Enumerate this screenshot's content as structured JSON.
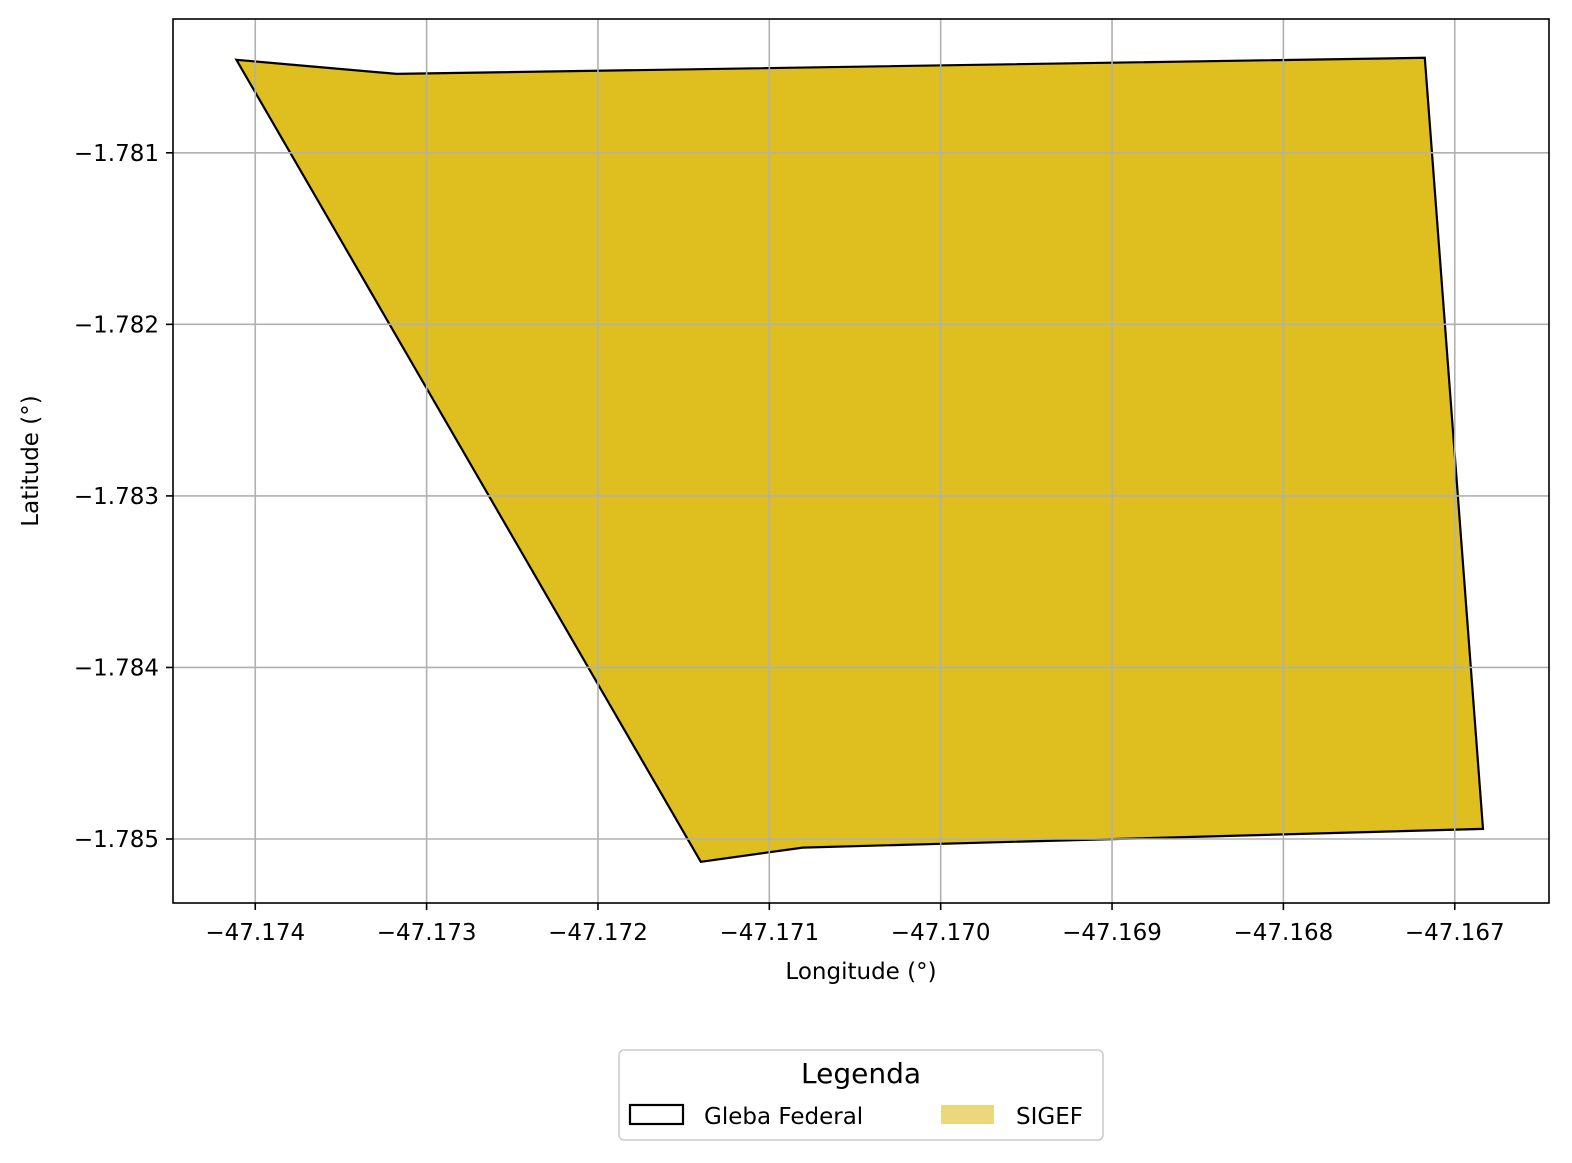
{
  "chart_data": {
    "type": "map",
    "xlabel": "Longitude (°)",
    "ylabel": "Latitude (°)",
    "xlim": [
      -47.17448,
      -47.16645
    ],
    "ylim": [
      -1.785373,
      -1.78022
    ],
    "grid": true,
    "x_ticks": [
      {
        "value": -47.174,
        "label": "−47.174"
      },
      {
        "value": -47.173,
        "label": "−47.173"
      },
      {
        "value": -47.172,
        "label": "−47.172"
      },
      {
        "value": -47.171,
        "label": "−47.171"
      },
      {
        "value": -47.17,
        "label": "−47.170"
      },
      {
        "value": -47.169,
        "label": "−47.169"
      },
      {
        "value": -47.168,
        "label": "−47.168"
      },
      {
        "value": -47.167,
        "label": "−47.167"
      }
    ],
    "y_ticks": [
      {
        "value": -1.781,
        "label": "−1.781"
      },
      {
        "value": -1.782,
        "label": "−1.782"
      },
      {
        "value": -1.783,
        "label": "−1.783"
      },
      {
        "value": -1.784,
        "label": "−1.784"
      },
      {
        "value": -1.785,
        "label": "−1.785"
      }
    ],
    "polygons": [
      {
        "name": "SIGEF",
        "fill": "#dfbe20",
        "stroke": "#000000",
        "coordinates": [
          [
            -47.17411,
            -1.780458
          ],
          [
            -47.173175,
            -1.78054
          ],
          [
            -47.167175,
            -1.780446
          ],
          [
            -47.166835,
            -1.784941
          ],
          [
            -47.170805,
            -1.78505
          ],
          [
            -47.1714,
            -1.785133
          ],
          [
            -47.17411,
            -1.780458
          ]
        ]
      }
    ],
    "legend": {
      "title": "Legenda",
      "placement": "bottom-center",
      "entries": [
        {
          "label": "Gleba Federal",
          "fill": "none",
          "stroke": "#000000"
        },
        {
          "label": "SIGEF",
          "fill": "#ebd77c",
          "stroke": "none"
        }
      ]
    }
  }
}
